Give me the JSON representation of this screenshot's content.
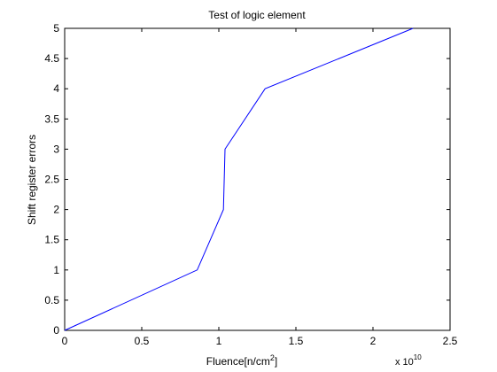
{
  "chart_data": {
    "type": "line",
    "title": "Test of logic element",
    "xlabel": "Fluence[n/cm",
    "xlabel_superscript": "2",
    "xlabel_suffix": "]",
    "ylabel": "Shift register errors",
    "x_multiplier_label": "x 10",
    "x_multiplier_exponent": "10",
    "xlim": [
      0,
      2.5
    ],
    "ylim": [
      0,
      5
    ],
    "x_ticks": [
      0,
      0.5,
      1,
      1.5,
      2,
      2.5
    ],
    "x_tick_labels": [
      "0",
      "0.5",
      "1",
      "1.5",
      "2",
      "2.5"
    ],
    "y_ticks": [
      0,
      0.5,
      1,
      1.5,
      2,
      2.5,
      3,
      3.5,
      4,
      4.5,
      5
    ],
    "y_tick_labels": [
      "0",
      "0.5",
      "1",
      "1.5",
      "2",
      "2.5",
      "3",
      "3.5",
      "4",
      "4.5",
      "5"
    ],
    "grid": false,
    "series": [
      {
        "color": "#0000ff",
        "x": [
          0,
          0.86,
          1.03,
          1.04,
          1.3,
          2.26
        ],
        "y": [
          0,
          1,
          2,
          3,
          4,
          5
        ]
      }
    ],
    "axis_color": "#000000",
    "background": "#ffffff"
  }
}
